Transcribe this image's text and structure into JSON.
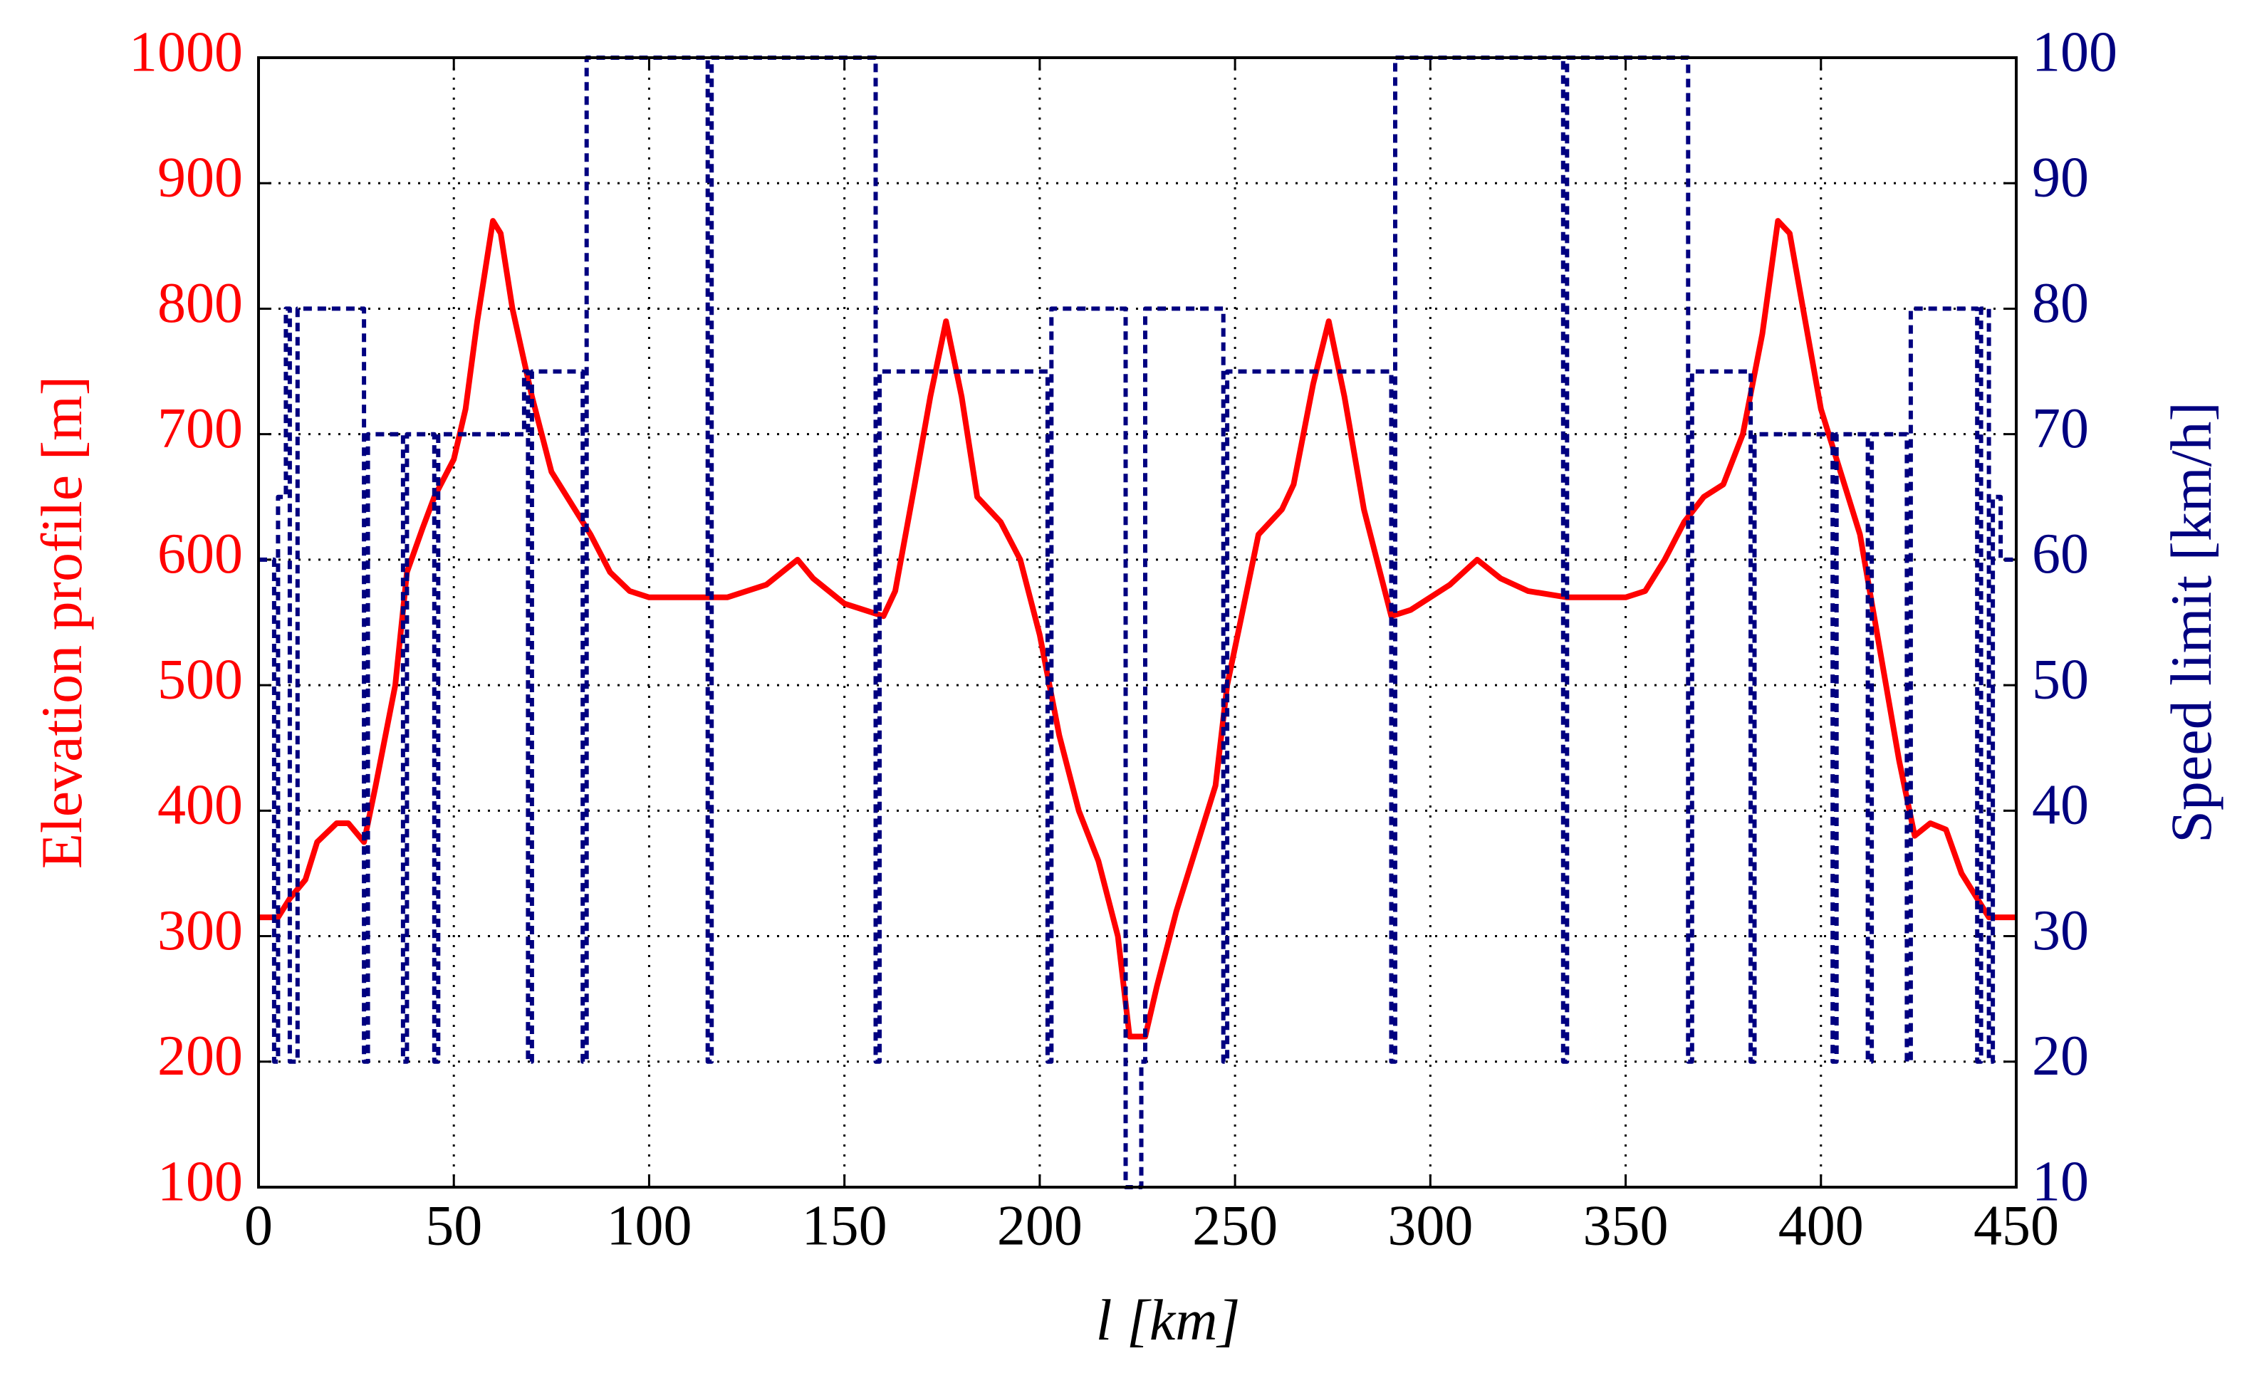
{
  "chart_data": {
    "type": "line",
    "xlabel": "l [km]",
    "ylabel": "Elevation profile [m]",
    "y2label": "Speed limit [km/h]",
    "xlim": [
      0,
      450
    ],
    "xticks": [
      0,
      50,
      100,
      150,
      200,
      250,
      300,
      350,
      400,
      450
    ],
    "ylim": [
      100,
      1000
    ],
    "yticks": [
      100,
      200,
      300,
      400,
      500,
      600,
      700,
      800,
      900,
      1000
    ],
    "y2lim": [
      10,
      100
    ],
    "y2ticks": [
      10,
      20,
      30,
      40,
      50,
      60,
      70,
      80,
      90,
      100
    ],
    "grid": true,
    "series": [
      {
        "color": "#ff0000",
        "style": "solid",
        "x": [
          0,
          5,
          8,
          12,
          15,
          20,
          23,
          27,
          30,
          35,
          38,
          42,
          45,
          50,
          53,
          56,
          60,
          62,
          65,
          70,
          75,
          80,
          85,
          90,
          95,
          100,
          110,
          120,
          130,
          138,
          142,
          150,
          160,
          163,
          168,
          172,
          176,
          180,
          184,
          190,
          195,
          200,
          205,
          210,
          215,
          220,
          223,
          227,
          230,
          235,
          240,
          245,
          248,
          252,
          256,
          262,
          265,
          270,
          274,
          278,
          283,
          290,
          295,
          305,
          312,
          318,
          325,
          335,
          350,
          355,
          360,
          365,
          370,
          375,
          380,
          385,
          389,
          392,
          396,
          400,
          405,
          410,
          415,
          420,
          424,
          428,
          432,
          436,
          440,
          443,
          450
        ],
        "values": [
          315,
          315,
          330,
          345,
          375,
          390,
          390,
          375,
          420,
          500,
          590,
          625,
          650,
          680,
          720,
          790,
          870,
          860,
          800,
          730,
          670,
          645,
          620,
          590,
          575,
          570,
          570,
          570,
          580,
          600,
          585,
          565,
          555,
          575,
          660,
          730,
          790,
          730,
          650,
          630,
          600,
          540,
          460,
          400,
          360,
          300,
          220,
          220,
          260,
          320,
          370,
          420,
          500,
          560,
          620,
          640,
          660,
          740,
          790,
          730,
          640,
          555,
          560,
          580,
          600,
          585,
          575,
          570,
          570,
          575,
          600,
          630,
          650,
          660,
          700,
          780,
          870,
          860,
          790,
          720,
          670,
          620,
          530,
          440,
          380,
          390,
          385,
          350,
          330,
          315,
          315
        ]
      },
      {
        "color": "#000080",
        "style": "dashed",
        "axis": "y2",
        "x": [
          0,
          4,
          4,
          5,
          5,
          7,
          7,
          8,
          8,
          10,
          10,
          27,
          27,
          28,
          28,
          37,
          37,
          38,
          38,
          45,
          45,
          46,
          46,
          68,
          68,
          69,
          69,
          70,
          70,
          83,
          83,
          84,
          84,
          115,
          115,
          116,
          116,
          158,
          158,
          159,
          159,
          202,
          202,
          203,
          203,
          222,
          222,
          226,
          226,
          227,
          227,
          247,
          247,
          248,
          248,
          290,
          290,
          291,
          291,
          334,
          334,
          335,
          335,
          366,
          366,
          367,
          367,
          382,
          382,
          383,
          383,
          403,
          403,
          404,
          404,
          412,
          412,
          413,
          413,
          422,
          422,
          423,
          423,
          440,
          440,
          441,
          441,
          443,
          443,
          444,
          444,
          446,
          446,
          450
        ],
        "values": [
          60,
          60,
          20,
          20,
          65,
          65,
          80,
          80,
          20,
          20,
          80,
          80,
          20,
          20,
          70,
          70,
          20,
          20,
          70,
          70,
          20,
          20,
          70,
          70,
          75,
          75,
          20,
          20,
          75,
          75,
          20,
          20,
          100,
          100,
          20,
          20,
          100,
          100,
          20,
          20,
          75,
          75,
          20,
          20,
          80,
          80,
          10,
          10,
          20,
          20,
          80,
          80,
          20,
          20,
          75,
          75,
          20,
          20,
          100,
          100,
          20,
          20,
          100,
          100,
          20,
          20,
          75,
          75,
          20,
          20,
          70,
          70,
          20,
          20,
          70,
          70,
          20,
          20,
          70,
          70,
          20,
          20,
          80,
          80,
          20,
          20,
          80,
          80,
          20,
          20,
          65,
          65,
          60,
          60
        ]
      }
    ]
  }
}
